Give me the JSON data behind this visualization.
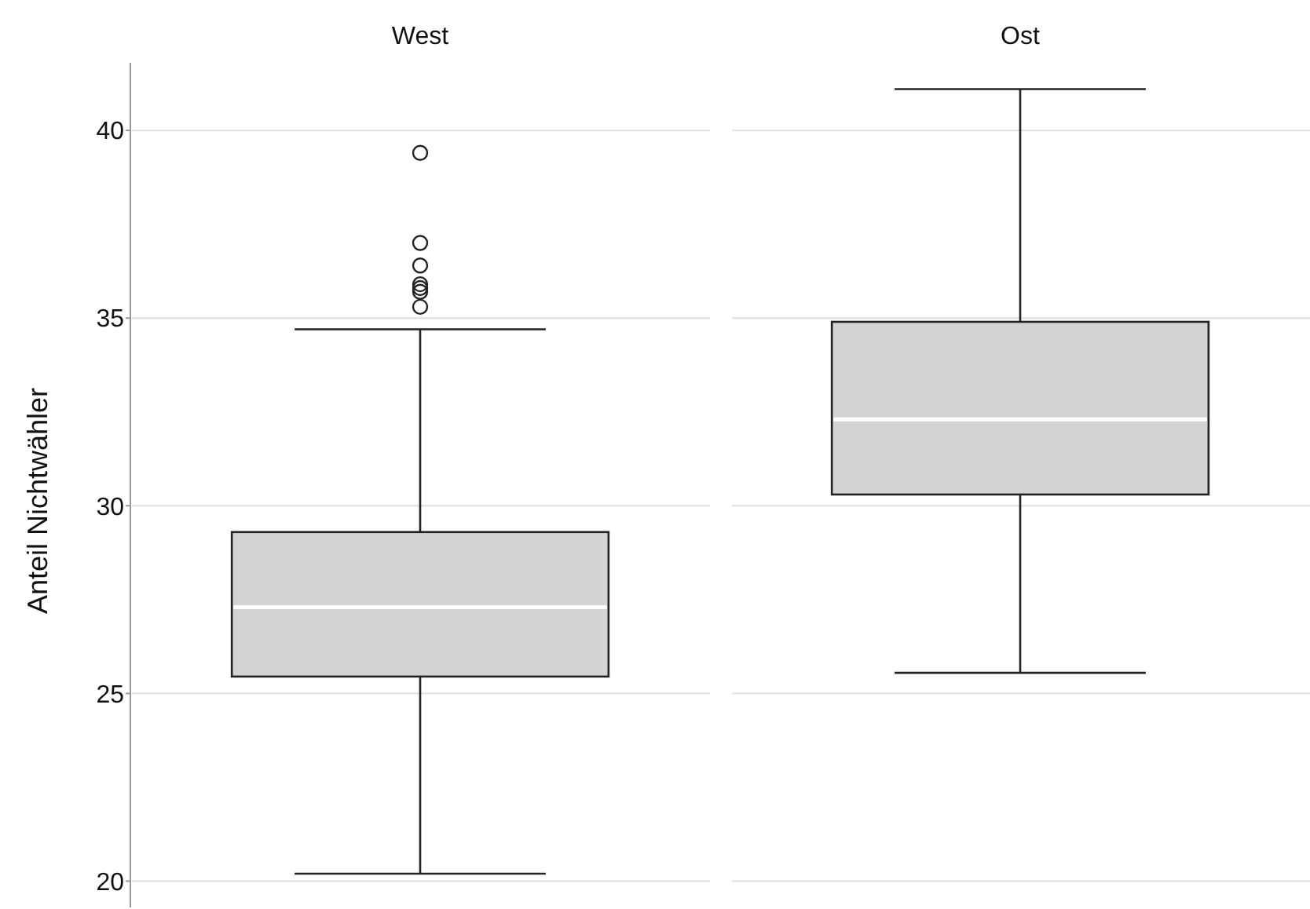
{
  "chart_data": {
    "type": "box",
    "ylabel": "Anteil Nichtwähler",
    "categories": [
      "West",
      "Ost"
    ],
    "boxes": [
      {
        "low": 20.2,
        "q1": 25.45,
        "median": 27.3,
        "q3": 29.3,
        "high": 34.7,
        "outliers": [
          39.4,
          37.0,
          36.4,
          35.9,
          35.8,
          35.7,
          35.3
        ]
      },
      {
        "low": 25.55,
        "q1": 30.3,
        "median": 32.3,
        "q3": 34.9,
        "high": 41.1
      }
    ],
    "color": "#d3d3d3",
    "ylim": [
      19.3,
      41.8
    ],
    "yticks": [
      20,
      25,
      30,
      35,
      40
    ],
    "grid": "y"
  }
}
